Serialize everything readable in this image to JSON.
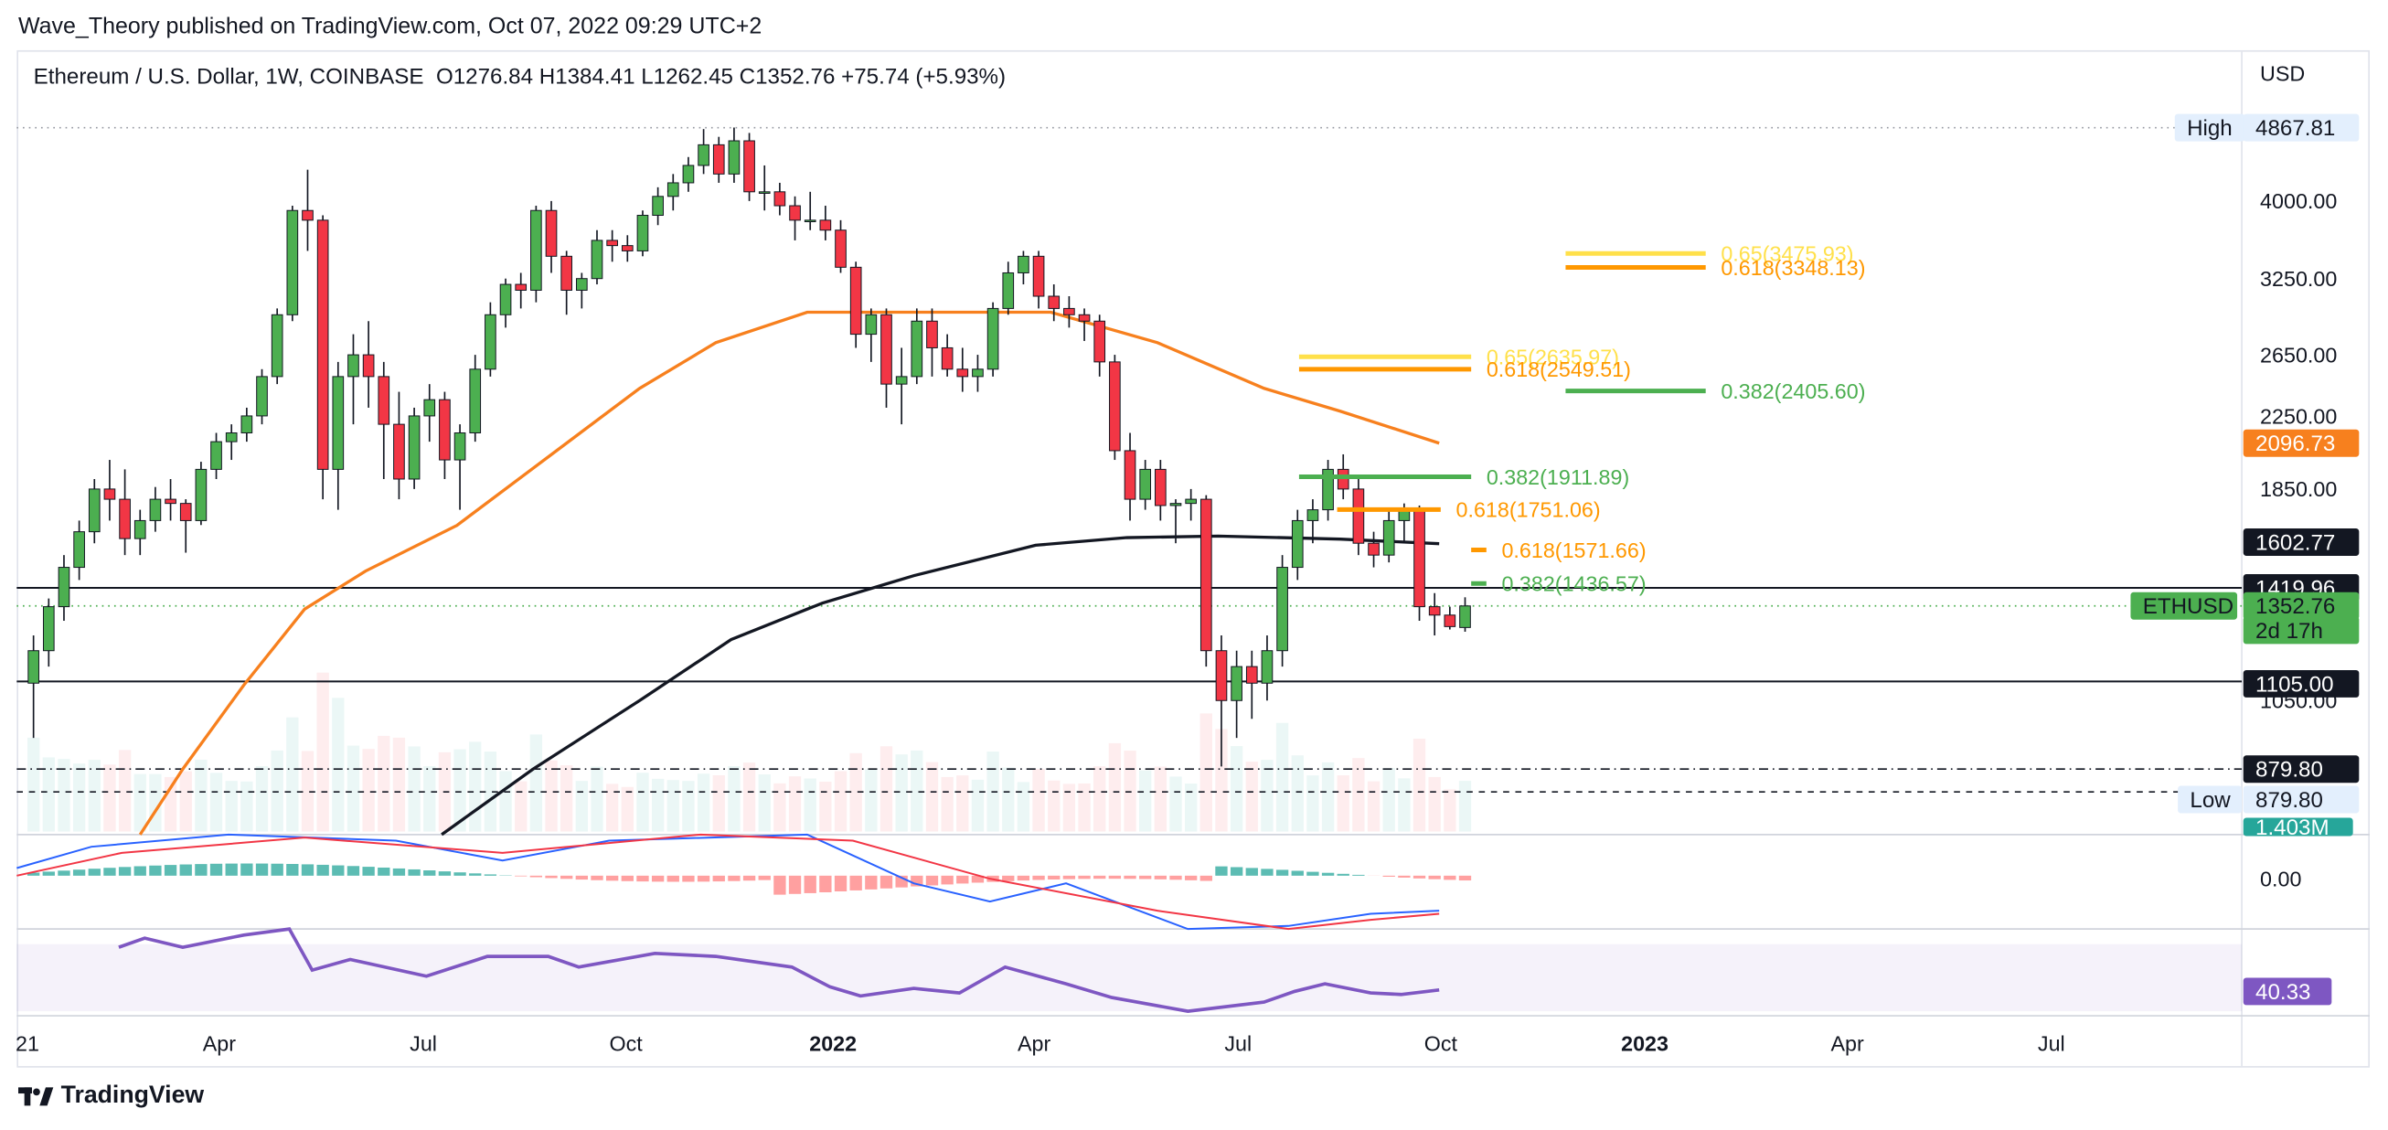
{
  "header": {
    "publisher": "Wave_Theory published on TradingView.com, Oct 07, 2022 09:29 UTC+2",
    "symbol": "Ethereum / U.S. Dollar, 1W, COINBASE",
    "ohlc": "O1276.84  H1384.41  L1262.45  C1352.76  +75.74 (+5.93%)"
  },
  "footer": {
    "brand": "TradingView"
  },
  "colors": {
    "up": "#4caf50",
    "down": "#f23645",
    "ema50": "#f7801e",
    "ema200": "#131722",
    "fib_yellow": "#ffe04a",
    "fib_orange": "#ff9800",
    "fib_green": "#4caf50",
    "rsi": "#7e57c2",
    "macd_line": "#2962ff",
    "signal_line": "#f23645"
  },
  "chart_data": {
    "type": "candlestick",
    "title": "Ethereum / U.S. Dollar, 1W, COINBASE",
    "y_axis_unit": "USD",
    "y_scale": "log",
    "y_ticks": [
      "4000.00",
      "3250.00",
      "2650.00",
      "2250.00",
      "1850.00",
      "1050.00"
    ],
    "x_ticks": [
      "21",
      "Apr",
      "Jul",
      "Oct",
      "2022",
      "Apr",
      "Jul",
      "Oct",
      "2023",
      "Apr",
      "Jul"
    ],
    "price_labels": {
      "high_label": "High",
      "high_value": "4867.81",
      "low_label": "Low",
      "low_value": "879.80",
      "ema50": "2096.73",
      "ema200": "1602.77",
      "resistance": "1419.96",
      "symbol": "ETHUSD",
      "last": "1352.76",
      "countdown": "2d 17h",
      "support": "1105.00",
      "low_line": "879.80",
      "volume": "1.403M"
    },
    "horizontal_levels": [
      1419.96,
      1105.0,
      879.8,
      4867.81,
      1352.76
    ],
    "fib_levels": [
      {
        "label": "0.65(3475.93)",
        "value": 3475.93,
        "color": "#ffe04a"
      },
      {
        "label": "0.618(3348.13)",
        "value": 3348.13,
        "color": "#ff9800"
      },
      {
        "label": "0.65(2635.97)",
        "value": 2635.97,
        "color": "#ffe04a"
      },
      {
        "label": "0.618(2549.51)",
        "value": 2549.51,
        "color": "#ff9800"
      },
      {
        "label": "0.382(2405.60)",
        "value": 2405.6,
        "color": "#4caf50"
      },
      {
        "label": "0.382(1911.89)",
        "value": 1911.89,
        "color": "#4caf50"
      },
      {
        "label": "0.618(1751.06)",
        "value": 1751.06,
        "color": "#ff9800"
      },
      {
        "label": "0.618(1571.66)",
        "value": 1571.66,
        "color": "#ff9800"
      },
      {
        "label": "0.382(1436.57)",
        "value": 1436.57,
        "color": "#4caf50"
      }
    ],
    "candles": [
      [
        1100,
        1250,
        950,
        1200
      ],
      [
        1200,
        1380,
        1150,
        1350
      ],
      [
        1350,
        1550,
        1300,
        1500
      ],
      [
        1500,
        1700,
        1450,
        1650
      ],
      [
        1650,
        1900,
        1600,
        1850
      ],
      [
        1850,
        2000,
        1700,
        1800
      ],
      [
        1800,
        1950,
        1550,
        1620
      ],
      [
        1620,
        1750,
        1550,
        1700
      ],
      [
        1700,
        1860,
        1650,
        1800
      ],
      [
        1800,
        1900,
        1700,
        1780
      ],
      [
        1780,
        1800,
        1560,
        1700
      ],
      [
        1700,
        1990,
        1680,
        1950
      ],
      [
        1950,
        2150,
        1900,
        2100
      ],
      [
        2100,
        2200,
        2000,
        2150
      ],
      [
        2150,
        2300,
        2100,
        2250
      ],
      [
        2250,
        2550,
        2200,
        2500
      ],
      [
        2500,
        3000,
        2450,
        2950
      ],
      [
        2950,
        3950,
        2900,
        3900
      ],
      [
        3900,
        4350,
        3500,
        3800
      ],
      [
        3800,
        3850,
        1800,
        1950
      ],
      [
        1950,
        2600,
        1750,
        2500
      ],
      [
        2500,
        2800,
        2200,
        2650
      ],
      [
        2650,
        2900,
        2300,
        2500
      ],
      [
        2500,
        2600,
        1900,
        2200
      ],
      [
        2200,
        2400,
        1800,
        1900
      ],
      [
        1900,
        2300,
        1850,
        2250
      ],
      [
        2250,
        2450,
        2100,
        2350
      ],
      [
        2350,
        2400,
        1900,
        2000
      ],
      [
        2000,
        2200,
        1750,
        2150
      ],
      [
        2150,
        2650,
        2100,
        2550
      ],
      [
        2550,
        3050,
        2500,
        2950
      ],
      [
        2950,
        3250,
        2850,
        3200
      ],
      [
        3200,
        3300,
        3000,
        3150
      ],
      [
        3150,
        3950,
        3050,
        3900
      ],
      [
        3900,
        4000,
        3300,
        3450
      ],
      [
        3450,
        3500,
        2950,
        3150
      ],
      [
        3150,
        3300,
        3000,
        3250
      ],
      [
        3250,
        3700,
        3200,
        3600
      ],
      [
        3600,
        3700,
        3400,
        3550
      ],
      [
        3550,
        3650,
        3400,
        3500
      ],
      [
        3500,
        3900,
        3450,
        3850
      ],
      [
        3850,
        4150,
        3750,
        4050
      ],
      [
        4050,
        4300,
        3900,
        4200
      ],
      [
        4200,
        4500,
        4100,
        4400
      ],
      [
        4400,
        4850,
        4300,
        4650
      ],
      [
        4650,
        4750,
        4200,
        4300
      ],
      [
        4300,
        4870,
        4200,
        4700
      ],
      [
        4700,
        4800,
        4000,
        4100
      ],
      [
        4100,
        4400,
        3900,
        4100
      ],
      [
        4100,
        4200,
        3850,
        3950
      ],
      [
        3950,
        4050,
        3600,
        3800
      ],
      [
        3800,
        4100,
        3700,
        3800
      ],
      [
        3800,
        3950,
        3600,
        3700
      ],
      [
        3700,
        3800,
        3300,
        3350
      ],
      [
        3350,
        3400,
        2700,
        2800
      ],
      [
        2800,
        3000,
        2600,
        2950
      ],
      [
        2950,
        3000,
        2300,
        2450
      ],
      [
        2450,
        2700,
        2200,
        2500
      ],
      [
        2500,
        3000,
        2450,
        2900
      ],
      [
        2900,
        3000,
        2500,
        2700
      ],
      [
        2700,
        2800,
        2500,
        2550
      ],
      [
        2550,
        2700,
        2400,
        2500
      ],
      [
        2500,
        2650,
        2400,
        2550
      ],
      [
        2550,
        3050,
        2500,
        3000
      ],
      [
        3000,
        3400,
        2950,
        3300
      ],
      [
        3300,
        3500,
        3200,
        3450
      ],
      [
        3450,
        3500,
        3000,
        3100
      ],
      [
        3100,
        3200,
        2900,
        3000
      ],
      [
        3000,
        3100,
        2850,
        2950
      ],
      [
        2950,
        3000,
        2750,
        2900
      ],
      [
        2900,
        2950,
        2500,
        2600
      ],
      [
        2600,
        2650,
        2000,
        2050
      ],
      [
        2050,
        2150,
        1700,
        1800
      ],
      [
        1800,
        2000,
        1750,
        1950
      ],
      [
        1950,
        2000,
        1700,
        1770
      ],
      [
        1770,
        1800,
        1600,
        1780
      ],
      [
        1780,
        1850,
        1700,
        1800
      ],
      [
        1800,
        1820,
        1150,
        1200
      ],
      [
        1200,
        1250,
        880,
        1050
      ],
      [
        1050,
        1200,
        950,
        1150
      ],
      [
        1150,
        1200,
        1000,
        1100
      ],
      [
        1100,
        1250,
        1050,
        1200
      ],
      [
        1200,
        1550,
        1150,
        1500
      ],
      [
        1500,
        1750,
        1450,
        1700
      ],
      [
        1700,
        1800,
        1600,
        1750
      ],
      [
        1750,
        2000,
        1700,
        1950
      ],
      [
        1950,
        2030,
        1800,
        1850
      ],
      [
        1850,
        1900,
        1550,
        1600
      ],
      [
        1600,
        1650,
        1500,
        1550
      ],
      [
        1550,
        1750,
        1520,
        1700
      ],
      [
        1700,
        1780,
        1600,
        1750
      ],
      [
        1750,
        1770,
        1300,
        1350
      ],
      [
        1350,
        1400,
        1250,
        1320
      ],
      [
        1320,
        1350,
        1270,
        1280
      ],
      [
        1276.84,
        1384.41,
        1262.45,
        1352.76
      ]
    ],
    "ema50_path_note": "orange moving average line",
    "ema200_path_note": "black moving average line",
    "macd": {
      "zero_label": "0.00"
    },
    "rsi": {
      "value_label": "40.33"
    }
  }
}
